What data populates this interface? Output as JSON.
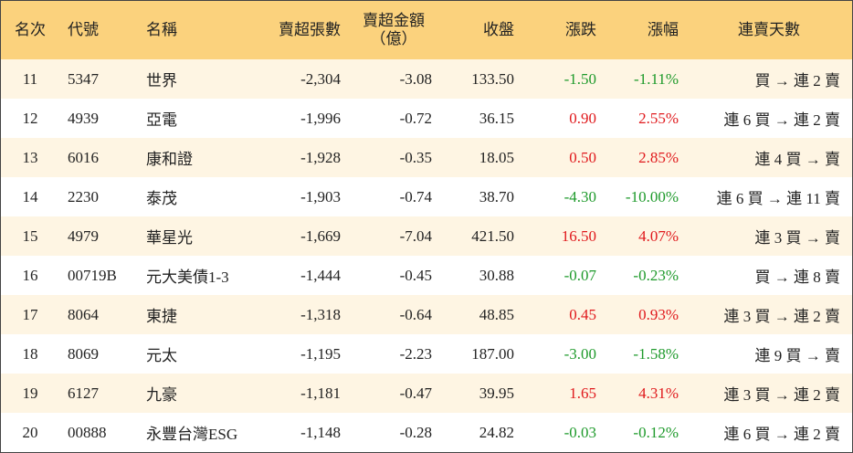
{
  "table": {
    "header": [
      "名次",
      "代號",
      "名稱",
      "賣超張數",
      [
        "賣超金額",
        "（億）"
      ],
      "收盤",
      "漲跌",
      "漲幅",
      "連賣天數"
    ],
    "rows": [
      [
        "11",
        "5347",
        "世界",
        "-2,304",
        "-3.08",
        "133.50",
        "-1.50",
        "-1.11%",
        "買 → 連 2 賣"
      ],
      [
        "12",
        "4939",
        "亞電",
        "-1,996",
        "-0.72",
        "36.15",
        "0.90",
        "2.55%",
        "連 6 買 → 連 2 賣"
      ],
      [
        "13",
        "6016",
        "康和證",
        "-1,928",
        "-0.35",
        "18.05",
        "0.50",
        "2.85%",
        "連 4 買 → 賣"
      ],
      [
        "14",
        "2230",
        "泰茂",
        "-1,903",
        "-0.74",
        "38.70",
        "-4.30",
        "-10.00%",
        "連 6 買 → 連 11 賣"
      ],
      [
        "15",
        "4979",
        "華星光",
        "-1,669",
        "-7.04",
        "421.50",
        "16.50",
        "4.07%",
        "連 3 買 → 賣"
      ],
      [
        "16",
        "00719B",
        "元大美債1-3",
        "-1,444",
        "-0.45",
        "30.88",
        "-0.07",
        "-0.23%",
        "買 → 連 8 賣"
      ],
      [
        "17",
        "8064",
        "東捷",
        "-1,318",
        "-0.64",
        "48.85",
        "0.45",
        "0.93%",
        "連 3 買 → 連 2 賣"
      ],
      [
        "18",
        "8069",
        "元太",
        "-1,195",
        "-2.23",
        "187.00",
        "-3.00",
        "-1.58%",
        "連 9 買 → 賣"
      ],
      [
        "19",
        "6127",
        "九豪",
        "-1,181",
        "-0.47",
        "39.95",
        "1.65",
        "4.31%",
        "連 3 買 → 連 2 賣"
      ],
      [
        "20",
        "00888",
        "永豐台灣ESG",
        "-1,148",
        "-0.28",
        "24.82",
        "-0.03",
        "-0.12%",
        "連 6 買 → 連 2 賣"
      ]
    ]
  }
}
